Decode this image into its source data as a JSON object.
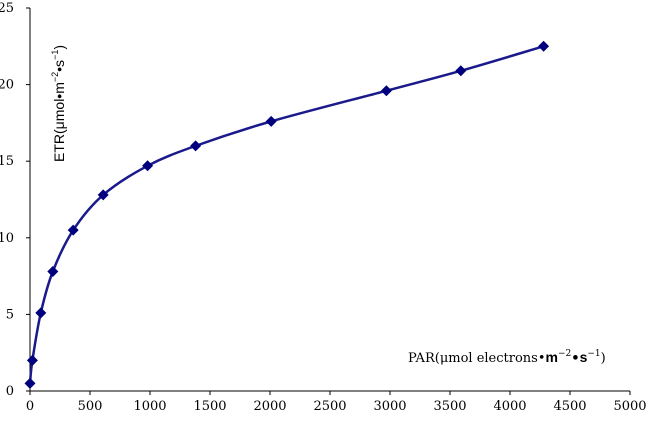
{
  "chart_data": {
    "type": "line",
    "xlabel": {
      "prefix": "PAR(",
      "mu": "μ",
      "mid": "mol electrons•",
      "m": "m",
      "m_exp": "−2",
      "dot": "•",
      "s": "s",
      "s_exp": "−1",
      "suffix": ")"
    },
    "ylabel": {
      "prefix": "ETR(",
      "mu": "μ",
      "mid": "mol•",
      "m": "m",
      "m_exp": "−2",
      "dot": "•",
      "s": "s",
      "s_exp": "−1",
      "suffix": ")"
    },
    "xlim": [
      0,
      5000
    ],
    "ylim": [
      0,
      25
    ],
    "xticks": [
      "0",
      "500",
      "1000",
      "1500",
      "2000",
      "2500",
      "3000",
      "3500",
      "4000",
      "4500",
      "5000"
    ],
    "yticks": [
      "0",
      "5",
      "10",
      "15",
      "20",
      "25"
    ],
    "grid": false,
    "line_color": "#1a1a8c",
    "marker_color": "#00007f",
    "series": [
      {
        "x": [
          0,
          20,
          90,
          190,
          360,
          610,
          980,
          1380,
          2010,
          2970,
          3590,
          4280
        ],
        "y": [
          0.5,
          2.0,
          5.1,
          7.8,
          10.5,
          12.8,
          14.7,
          16.0,
          17.6,
          19.6,
          20.9,
          22.5
        ]
      }
    ]
  }
}
